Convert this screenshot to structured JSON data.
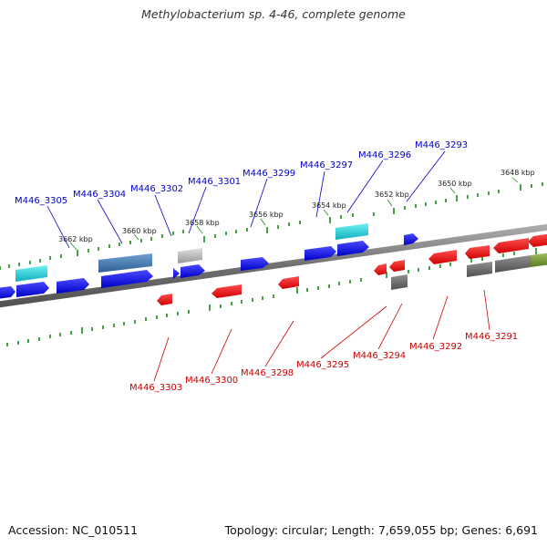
{
  "title": "Methylobacterium sp. 4-46, complete genome",
  "footer": {
    "accession": "Accession: NC_010511",
    "topology": "Topology: circular; Length: 7,659,055 bp; Genes: 6,691"
  },
  "colors": {
    "forward_label": "#0000cc",
    "reverse_label": "#cc0000",
    "ruler_ticks": "#1a8a1a",
    "backbone": "#808080"
  },
  "kbp_ticks": [
    "3662 kbp",
    "3660 kbp",
    "3658 kbp",
    "3656 kbp",
    "3654 kbp",
    "3652 kbp",
    "3650 kbp",
    "3648 kbp"
  ],
  "forward_genes": [
    "M446_3305",
    "M446_3304",
    "M446_3302",
    "M446_3301",
    "M446_3299",
    "M446_3297",
    "M446_3296",
    "M446_3293"
  ],
  "reverse_genes": [
    "M446_3303",
    "M446_3300",
    "M446_3298",
    "M446_3295",
    "M446_3294",
    "M446_3292",
    "M446_3291"
  ]
}
